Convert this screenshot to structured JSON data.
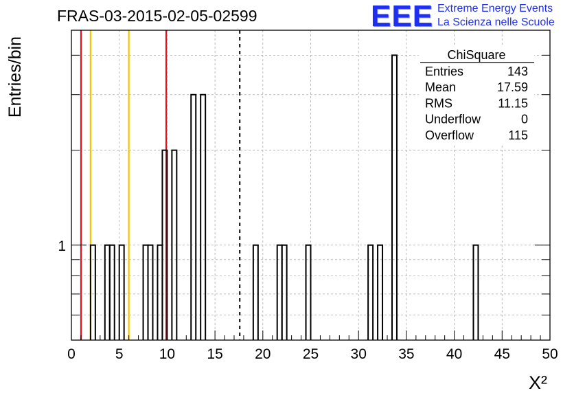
{
  "chart_data": {
    "type": "histogram",
    "title": "FRAS-03-2015-02-05-02599",
    "xlabel": "X²",
    "ylabel": "Entries/bin",
    "xlim": [
      0,
      50
    ],
    "ylog": true,
    "ylim": [
      0.5,
      4.8
    ],
    "y_tick_labels": [
      "1"
    ],
    "x_tick_labels": [
      "0",
      "5",
      "10",
      "15",
      "20",
      "25",
      "30",
      "35",
      "40",
      "45",
      "50"
    ],
    "x_ticks": [
      0,
      5,
      10,
      15,
      20,
      25,
      30,
      35,
      40,
      45,
      50
    ],
    "grid": true,
    "bin_width": 0.5,
    "bins": [
      {
        "x": 2.0,
        "y": 1
      },
      {
        "x": 3.5,
        "y": 1
      },
      {
        "x": 4.0,
        "y": 1
      },
      {
        "x": 5.0,
        "y": 1
      },
      {
        "x": 7.5,
        "y": 1
      },
      {
        "x": 8.0,
        "y": 1
      },
      {
        "x": 9.0,
        "y": 1
      },
      {
        "x": 9.5,
        "y": 2
      },
      {
        "x": 10.5,
        "y": 2
      },
      {
        "x": 12.5,
        "y": 3
      },
      {
        "x": 13.5,
        "y": 3
      },
      {
        "x": 19.0,
        "y": 1
      },
      {
        "x": 21.5,
        "y": 1
      },
      {
        "x": 22.0,
        "y": 1
      },
      {
        "x": 24.5,
        "y": 1
      },
      {
        "x": 31.0,
        "y": 1
      },
      {
        "x": 32.0,
        "y": 1
      },
      {
        "x": 33.5,
        "y": 4
      },
      {
        "x": 42.0,
        "y": 1
      }
    ],
    "vertical_lines": [
      {
        "x": 1.0,
        "color": "#e8131a",
        "style": "solid"
      },
      {
        "x": 2.0,
        "color": "#f5c400",
        "style": "solid"
      },
      {
        "x": 6.0,
        "color": "#f5c400",
        "style": "solid"
      },
      {
        "x": 9.9,
        "color": "#e8131a",
        "style": "solid"
      },
      {
        "x": 17.59,
        "color": "#000000",
        "style": "dashed"
      }
    ],
    "stats": {
      "name": "ChiSquare",
      "rows": [
        {
          "label": "Entries",
          "value": "143"
        },
        {
          "label": "Mean",
          "value": "17.59"
        },
        {
          "label": "RMS",
          "value": "11.15"
        },
        {
          "label": "Underflow",
          "value": "0"
        },
        {
          "label": "Overflow",
          "value": "115"
        }
      ]
    }
  },
  "branding": {
    "logo": "EEE",
    "line1": "Extreme Energy Events",
    "line2": "La Scienza nelle Scuole"
  }
}
